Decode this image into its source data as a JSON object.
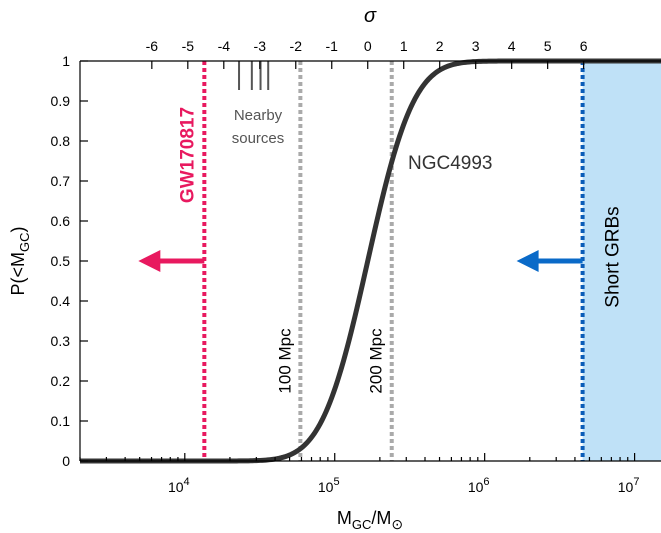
{
  "chart_data": {
    "type": "line",
    "title": "",
    "top_axis_label": "σ",
    "xlabel": {
      "main": "M",
      "sub": "GC",
      "mid": "/M",
      "sun": "⊙"
    },
    "ylabel": {
      "main": "P(<M",
      "sub": "GC",
      "end": ")"
    },
    "x_scale": "log",
    "xlim": [
      2000,
      15000000
    ],
    "ylim": [
      0,
      1
    ],
    "bottom_ticks": [
      {
        "value": 10000,
        "base": "10",
        "exp": "4"
      },
      {
        "value": 100000,
        "base": "10",
        "exp": "5"
      },
      {
        "value": 1000000,
        "base": "10",
        "exp": "6"
      },
      {
        "value": 10000000,
        "base": "10",
        "exp": "7"
      }
    ],
    "y_ticks": [
      {
        "value": 0,
        "label": "0"
      },
      {
        "value": 0.1,
        "label": "0.1"
      },
      {
        "value": 0.2,
        "label": "0.2"
      },
      {
        "value": 0.3,
        "label": "0.3"
      },
      {
        "value": 0.4,
        "label": "0.4"
      },
      {
        "value": 0.5,
        "label": "0.5"
      },
      {
        "value": 0.6,
        "label": "0.6"
      },
      {
        "value": 0.7,
        "label": "0.7"
      },
      {
        "value": 0.8,
        "label": "0.8"
      },
      {
        "value": 0.9,
        "label": "0.9"
      },
      {
        "value": 1,
        "label": "1"
      }
    ],
    "sigma_ticks": [
      {
        "sigma": -6,
        "label": "-6"
      },
      {
        "sigma": -5,
        "label": "-5"
      },
      {
        "sigma": -4,
        "label": "-4"
      },
      {
        "sigma": -3,
        "label": "-3"
      },
      {
        "sigma": -2,
        "label": "-2"
      },
      {
        "sigma": -1,
        "label": "-1"
      },
      {
        "sigma": 0,
        "label": "0"
      },
      {
        "sigma": 1,
        "label": "1"
      },
      {
        "sigma": 2,
        "label": "2"
      },
      {
        "sigma": 3,
        "label": "3"
      },
      {
        "sigma": 4,
        "label": "4"
      },
      {
        "sigma": 5,
        "label": "5"
      },
      {
        "sigma": 6,
        "label": "6"
      }
    ],
    "cdf": {
      "mean_mass": 166000,
      "sigma_dex": 0.24
    },
    "vertical_lines": [
      {
        "x": 13500,
        "label": "GW170817",
        "color": "#e8195f"
      },
      {
        "x": 59000,
        "label": "100 Mpc",
        "color": "#aaaaaa"
      },
      {
        "x": 240000,
        "label": "200 Mpc",
        "color": "#aaaaaa"
      },
      {
        "x": 4500000,
        "label": "",
        "color": "#0a5cb8"
      }
    ],
    "nearby_sources": {
      "label_line1": "Nearby",
      "label_line2": "sources",
      "x": [
        23000,
        28000,
        32000,
        36000
      ]
    },
    "ngc4993_label": "NGC4993",
    "short_grbs": {
      "label": "Short GRBs",
      "x_min": 4500000,
      "fill": "#bfe1f7"
    },
    "arrows": [
      {
        "x_from": 13500,
        "y": 0.5,
        "color": "#e8195f"
      },
      {
        "x_from": 4500000,
        "y": 0.5,
        "color": "#0a6ac8"
      }
    ]
  }
}
